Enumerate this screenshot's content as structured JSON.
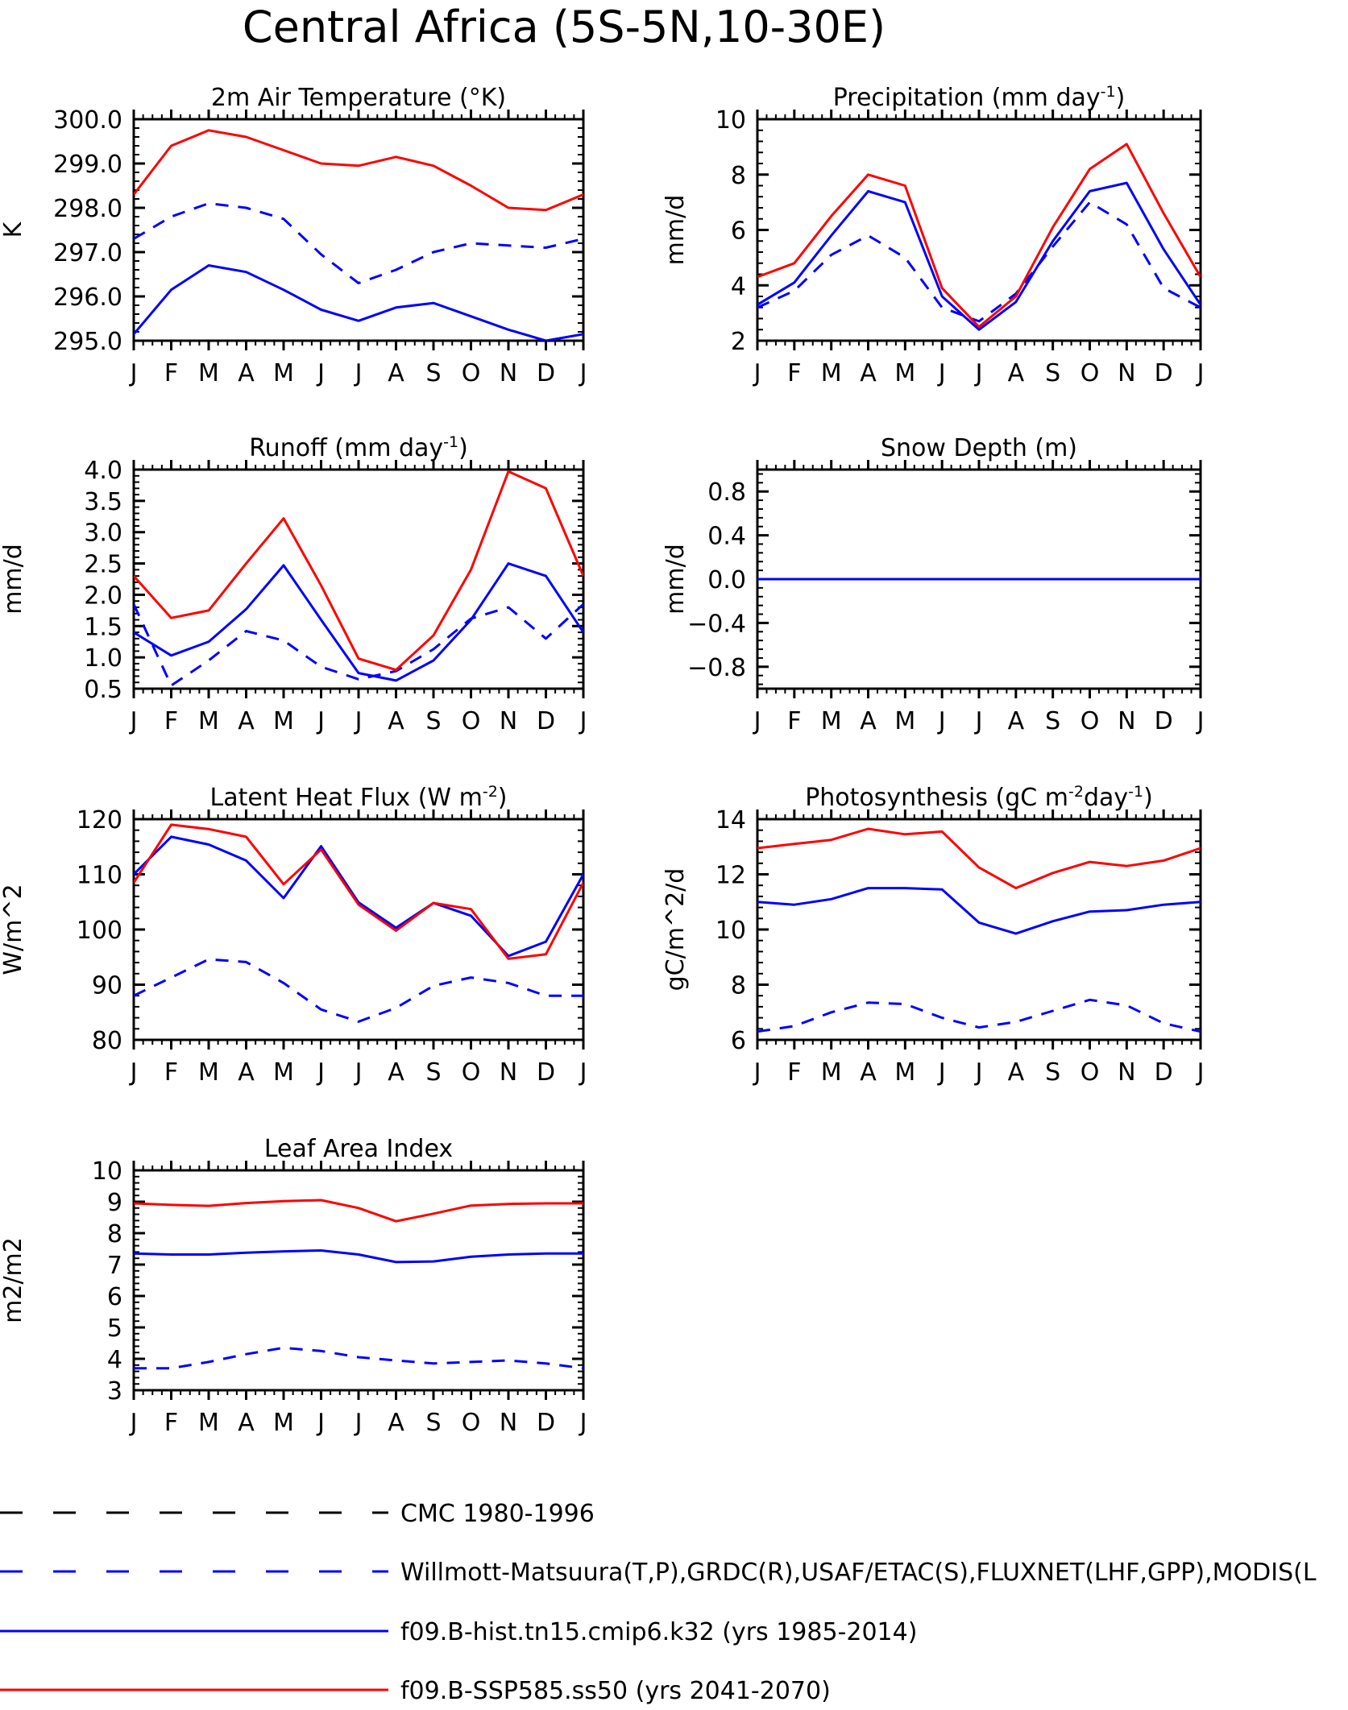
{
  "title": "Central Africa (5S-5N,10-30E)",
  "months": [
    "J",
    "F",
    "M",
    "A",
    "M",
    "J",
    "J",
    "A",
    "S",
    "O",
    "N",
    "D",
    "J"
  ],
  "colors": {
    "obs_cmc": "#000000",
    "obs": "#0000ff",
    "hist": "#0000ff",
    "ssp": "#ff0000"
  },
  "legend": [
    {
      "key": "obs_cmc",
      "label": "CMC 1980-1996",
      "color": "#000000",
      "style": "dashed"
    },
    {
      "key": "obs",
      "label": "Willmott-Matsuura(T,P),GRDC(R),USAF/ETAC(S),FLUXNET(LHF,GPP),MODIS(L",
      "color": "#0000ff",
      "style": "dashed"
    },
    {
      "key": "hist",
      "label": "f09.B-hist.tn15.cmip6.k32 (yrs 1985-2014)",
      "color": "#0000ff",
      "style": "solid"
    },
    {
      "key": "ssp",
      "label": "f09.B-SSP585.ss50 (yrs 2041-2070)",
      "color": "#ff0000",
      "style": "solid"
    }
  ],
  "chart_data": [
    {
      "type": "line",
      "title": "2m Air Temperature (°K)",
      "ylabel": "K",
      "ylim": [
        295,
        300
      ],
      "yticks": [
        "295.0",
        "296.0",
        "297.0",
        "298.0",
        "299.0",
        "300.0"
      ],
      "ytick_values": [
        295,
        296,
        297,
        298,
        299,
        300
      ],
      "x": [
        "J",
        "F",
        "M",
        "A",
        "M",
        "J",
        "J",
        "A",
        "S",
        "O",
        "N",
        "D",
        "J"
      ],
      "series": [
        {
          "key": "obs",
          "style": "dashed",
          "values": [
            297.3,
            297.8,
            298.1,
            298.0,
            297.75,
            296.95,
            296.3,
            296.6,
            297.0,
            297.2,
            297.15,
            297.1,
            297.3
          ]
        },
        {
          "key": "hist",
          "style": "solid",
          "values": [
            295.15,
            296.15,
            296.7,
            296.55,
            296.15,
            295.7,
            295.45,
            295.75,
            295.85,
            295.55,
            295.25,
            295.0,
            295.15
          ]
        },
        {
          "key": "ssp",
          "style": "solid",
          "values": [
            298.3,
            299.4,
            299.75,
            299.6,
            299.3,
            299.0,
            298.95,
            299.15,
            298.95,
            298.5,
            298.0,
            297.95,
            298.3
          ]
        }
      ]
    },
    {
      "type": "line",
      "title": "Precipitation (mm day",
      "title_sup": "-1",
      "title_after": ")",
      "ylabel": "mm/d",
      "ylim": [
        2,
        10
      ],
      "yticks": [
        "2",
        "4",
        "6",
        "8",
        "10"
      ],
      "ytick_values": [
        2,
        4,
        6,
        8,
        10
      ],
      "x": [
        "J",
        "F",
        "M",
        "A",
        "M",
        "J",
        "J",
        "A",
        "S",
        "O",
        "N",
        "D",
        "J"
      ],
      "series": [
        {
          "key": "obs",
          "style": "dashed",
          "values": [
            3.2,
            3.8,
            5.1,
            5.8,
            5.0,
            3.2,
            2.7,
            3.7,
            5.4,
            7.0,
            6.2,
            3.9,
            3.2
          ]
        },
        {
          "key": "hist",
          "style": "solid",
          "values": [
            3.3,
            4.1,
            5.8,
            7.4,
            7.0,
            3.6,
            2.4,
            3.4,
            5.6,
            7.4,
            7.7,
            5.3,
            3.3
          ]
        },
        {
          "key": "ssp",
          "style": "solid",
          "values": [
            4.3,
            4.8,
            6.5,
            8.0,
            7.6,
            3.9,
            2.5,
            3.6,
            6.1,
            8.2,
            9.1,
            6.6,
            4.3
          ]
        }
      ]
    },
    {
      "type": "line",
      "title": "Runoff (mm day",
      "title_sup": "-1",
      "title_after": ")",
      "ylabel": "mm/d",
      "ylim": [
        0.5,
        4.0
      ],
      "yticks": [
        "0.5",
        "1.0",
        "1.5",
        "2.0",
        "2.5",
        "3.0",
        "3.5",
        "4.0"
      ],
      "ytick_values": [
        0.5,
        1.0,
        1.5,
        2.0,
        2.5,
        3.0,
        3.5,
        4.0
      ],
      "x": [
        "J",
        "F",
        "M",
        "A",
        "M",
        "J",
        "J",
        "A",
        "S",
        "O",
        "N",
        "D",
        "J"
      ],
      "series": [
        {
          "key": "obs",
          "style": "dashed",
          "values": [
            1.85,
            0.55,
            0.95,
            1.42,
            1.27,
            0.85,
            0.65,
            0.78,
            1.13,
            1.62,
            1.8,
            1.3,
            1.85
          ]
        },
        {
          "key": "hist",
          "style": "solid",
          "values": [
            1.4,
            1.03,
            1.25,
            1.77,
            2.47,
            1.6,
            0.75,
            0.63,
            0.95,
            1.6,
            2.5,
            2.3,
            1.4
          ]
        },
        {
          "key": "ssp",
          "style": "solid",
          "values": [
            2.3,
            1.63,
            1.75,
            2.5,
            3.22,
            2.15,
            0.98,
            0.8,
            1.35,
            2.4,
            3.97,
            3.7,
            2.3
          ]
        }
      ]
    },
    {
      "type": "line",
      "title": "Snow Depth (m)",
      "ylabel": "mm/d",
      "ylim": [
        -1.0,
        1.0
      ],
      "yticks": [
        "−0.8",
        "−0.4",
        "0.0",
        "0.4",
        "0.8"
      ],
      "ytick_values": [
        -0.8,
        -0.4,
        0.0,
        0.4,
        0.8
      ],
      "x": [
        "J",
        "F",
        "M",
        "A",
        "M",
        "J",
        "J",
        "A",
        "S",
        "O",
        "N",
        "D",
        "J"
      ],
      "series": [
        {
          "key": "ssp",
          "style": "solid",
          "values": [
            0,
            0,
            0,
            0,
            0,
            0,
            0,
            0,
            0,
            0,
            0,
            0,
            0
          ]
        },
        {
          "key": "hist",
          "style": "solid",
          "values": [
            0,
            0,
            0,
            0,
            0,
            0,
            0,
            0,
            0,
            0,
            0,
            0,
            0
          ]
        },
        {
          "key": "obs",
          "style": "dashed",
          "values": [
            0,
            0,
            0,
            0,
            0,
            0,
            0,
            0,
            0,
            0,
            0,
            0,
            0
          ]
        }
      ]
    },
    {
      "type": "line",
      "title": "Latent Heat Flux (W m",
      "title_sup": "-2",
      "title_after": ")",
      "ylabel": "W/m^2",
      "ylim": [
        80,
        120
      ],
      "yticks": [
        "80",
        "90",
        "100",
        "110",
        "120"
      ],
      "ytick_values": [
        80,
        90,
        100,
        110,
        120
      ],
      "x": [
        "J",
        "F",
        "M",
        "A",
        "M",
        "J",
        "J",
        "A",
        "S",
        "O",
        "N",
        "D",
        "J"
      ],
      "series": [
        {
          "key": "obs",
          "style": "dashed",
          "values": [
            88.0,
            91.3,
            94.6,
            94.1,
            90.3,
            85.5,
            83.3,
            85.8,
            89.8,
            91.3,
            90.3,
            88.0,
            88.0
          ]
        },
        {
          "key": "hist",
          "style": "solid",
          "values": [
            110.0,
            116.8,
            115.4,
            112.5,
            105.7,
            115.1,
            104.9,
            100.3,
            104.8,
            102.5,
            95.2,
            97.8,
            110.0
          ]
        },
        {
          "key": "ssp",
          "style": "solid",
          "values": [
            108.5,
            119.0,
            118.2,
            116.8,
            108.2,
            114.5,
            104.5,
            99.8,
            104.8,
            103.7,
            94.7,
            95.5,
            108.5
          ]
        }
      ]
    },
    {
      "type": "line",
      "title": "Photosynthesis (gC m",
      "title_sup": "-2",
      "title_mid": "day",
      "title_sup2": "-1",
      "title_after": ")",
      "ylabel": "gC/m^2/d",
      "ylim": [
        6,
        14
      ],
      "yticks": [
        "6",
        "8",
        "10",
        "12",
        "14"
      ],
      "ytick_values": [
        6,
        8,
        10,
        12,
        14
      ],
      "x": [
        "J",
        "F",
        "M",
        "A",
        "M",
        "J",
        "J",
        "A",
        "S",
        "O",
        "N",
        "D",
        "J"
      ],
      "series": [
        {
          "key": "obs",
          "style": "dashed",
          "values": [
            6.3,
            6.5,
            7.0,
            7.35,
            7.3,
            6.8,
            6.45,
            6.65,
            7.05,
            7.45,
            7.25,
            6.6,
            6.3
          ]
        },
        {
          "key": "hist",
          "style": "solid",
          "values": [
            11.0,
            10.9,
            11.1,
            11.5,
            11.5,
            11.45,
            10.25,
            9.85,
            10.3,
            10.65,
            10.7,
            10.9,
            11.0
          ]
        },
        {
          "key": "ssp",
          "style": "solid",
          "values": [
            12.95,
            13.1,
            13.25,
            13.65,
            13.45,
            13.55,
            12.25,
            11.5,
            12.05,
            12.45,
            12.3,
            12.5,
            12.95
          ]
        }
      ]
    },
    {
      "type": "line",
      "title": "Leaf Area Index",
      "ylabel": "m2/m2",
      "ylim": [
        3,
        10
      ],
      "yticks": [
        "3",
        "4",
        "5",
        "6",
        "7",
        "8",
        "9",
        "10"
      ],
      "ytick_values": [
        3,
        4,
        5,
        6,
        7,
        8,
        9,
        10
      ],
      "x": [
        "J",
        "F",
        "M",
        "A",
        "M",
        "J",
        "J",
        "A",
        "S",
        "O",
        "N",
        "D",
        "J"
      ],
      "series": [
        {
          "key": "obs",
          "style": "dashed",
          "values": [
            3.7,
            3.7,
            3.9,
            4.15,
            4.35,
            4.25,
            4.05,
            3.95,
            3.85,
            3.9,
            3.95,
            3.85,
            3.7
          ]
        },
        {
          "key": "hist",
          "style": "solid",
          "values": [
            7.35,
            7.32,
            7.32,
            7.38,
            7.42,
            7.45,
            7.32,
            7.08,
            7.1,
            7.25,
            7.32,
            7.35,
            7.35
          ]
        },
        {
          "key": "ssp",
          "style": "solid",
          "values": [
            8.95,
            8.9,
            8.87,
            8.96,
            9.02,
            9.05,
            8.8,
            8.38,
            8.62,
            8.88,
            8.93,
            8.95,
            8.95
          ]
        }
      ]
    }
  ]
}
